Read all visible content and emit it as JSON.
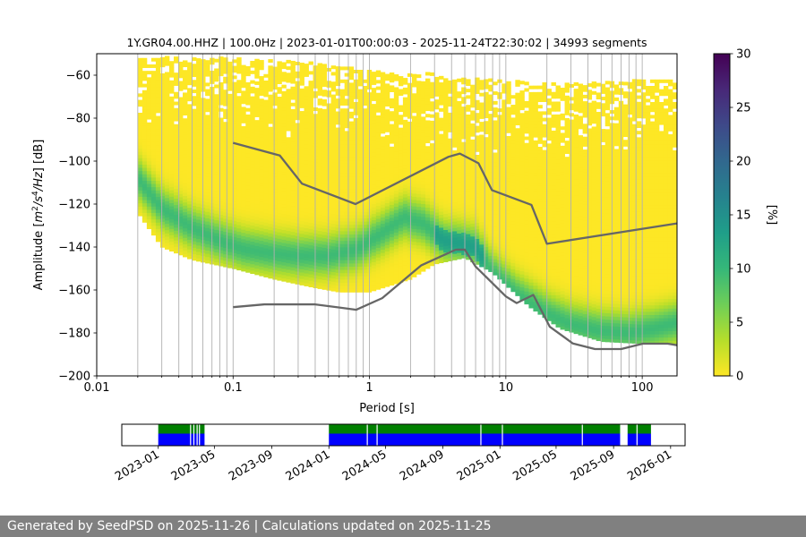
{
  "chart_data": [
    {
      "type": "heatmap",
      "title": "1Y.GR04.00.HHZ | 100.0Hz | 2023-01-01T00:00:03 - 2025-11-24T22:30:02 | 34993 segments",
      "xlabel": "Period [s]",
      "ylabel_parts": [
        "Amplitude [",
        "m",
        "2",
        "/s",
        "4",
        "/Hz",
        "] [dB]"
      ],
      "x_scale": "log",
      "xlim": [
        0.01,
        180
      ],
      "ylim": [
        -200,
        -50
      ],
      "x_ticks": [
        0.01,
        0.1,
        1,
        10,
        100
      ],
      "x_tick_labels": [
        "0.01",
        "0.1",
        "1",
        "10",
        "100"
      ],
      "y_ticks": [
        -200,
        -180,
        -160,
        -140,
        -120,
        -100,
        -80,
        -60
      ],
      "y_tick_labels": [
        "−200",
        "−180",
        "−160",
        "−140",
        "−120",
        "−100",
        "−80",
        "−60"
      ],
      "grid": "x-minor",
      "colorbar": {
        "label": "[%]",
        "range": [
          0,
          30
        ],
        "ticks": [
          0,
          5,
          10,
          15,
          20,
          25,
          30
        ],
        "tick_labels": [
          "0",
          "5",
          "10",
          "15",
          "20",
          "25",
          "30"
        ],
        "colormap": [
          "#fde725",
          "#b5de2b",
          "#6ece58",
          "#35b779",
          "#1f9e89",
          "#26828e",
          "#31688e",
          "#3e4989",
          "#482878",
          "#440154"
        ]
      },
      "mode_curve": {
        "period": [
          0.02,
          0.03,
          0.05,
          0.08,
          0.12,
          0.2,
          0.3,
          0.5,
          0.8,
          1.2,
          1.8,
          2.5,
          3.5,
          4.5,
          6,
          8,
          12,
          20,
          30,
          50,
          80,
          120,
          180
        ],
        "db": [
          -108,
          -122,
          -131,
          -137,
          -141,
          -143,
          -144,
          -144,
          -141,
          -134,
          -126,
          -129,
          -137,
          -138,
          -140,
          -152,
          -162,
          -171,
          -176,
          -179,
          -180,
          -178,
          -175
        ]
      },
      "support_bounds": {
        "period": [
          0.02,
          0.03,
          0.05,
          0.1,
          0.2,
          0.4,
          0.6,
          1.0,
          2.0,
          3.0,
          5.0,
          8.0,
          15.0,
          25.0,
          50.0,
          100.0,
          180.0
        ],
        "lower_db": [
          -124,
          -140,
          -146,
          -150,
          -155,
          -159,
          -161,
          -161,
          -155,
          -148,
          -145,
          -152,
          -168,
          -178,
          -184,
          -185,
          -185
        ],
        "upper_db": [
          -52,
          -52,
          -52,
          -53,
          -54,
          -55,
          -57,
          -58,
          -60,
          -60,
          -62,
          -63,
          -64,
          -65,
          -64,
          -63,
          -62
        ]
      },
      "series": [
        {
          "name": "",
          "color": "#666666",
          "x": [
            0.1,
            0.22,
            0.32,
            0.79,
            3.8,
            4.6,
            6.3,
            7.9,
            15.4,
            20,
            180
          ],
          "y": [
            -91.5,
            -97.4,
            -110.5,
            -120,
            -98,
            -96.5,
            -101,
            -113.5,
            -120.4,
            -138.5,
            -129
          ]
        },
        {
          "name": "",
          "color": "#666666",
          "x": [
            0.1,
            0.17,
            0.4,
            0.8,
            1.24,
            2.4,
            4.3,
            5.0,
            6.0,
            10,
            12,
            15.9,
            21,
            31,
            45,
            70,
            101,
            154,
            180
          ],
          "y": [
            -168,
            -166.7,
            -166.7,
            -169.2,
            -163.8,
            -148.5,
            -141.2,
            -141.2,
            -149.1,
            -163,
            -166.1,
            -162.3,
            -177.1,
            -184.9,
            -187.5,
            -187.5,
            -185,
            -185,
            -185.7
          ]
        }
      ]
    },
    {
      "type": "timeline",
      "x_tick_labels": [
        "2023-01",
        "2023-05",
        "2023-09",
        "2024-01",
        "2024-05",
        "2024-09",
        "2025-01",
        "2025-05",
        "2025-09",
        "2026-01"
      ],
      "x_ticks": [
        "2023-01-01",
        "2023-05-01",
        "2023-09-01",
        "2024-01-01",
        "2024-05-01",
        "2024-09-01",
        "2025-01-01",
        "2025-05-01",
        "2025-09-01",
        "2026-01-01"
      ],
      "xlim": [
        "2022-10-15",
        "2026-02-01"
      ],
      "colors": {
        "available": "#008000",
        "processed": "#0000ff"
      },
      "available_spans": [
        [
          "2023-01-01",
          "2023-04-10"
        ],
        [
          "2024-01-01",
          "2025-09-15"
        ],
        [
          "2025-10-01",
          "2025-11-20"
        ]
      ],
      "processed_spans": [
        [
          "2023-01-01",
          "2023-04-10"
        ],
        [
          "2024-01-01",
          "2025-09-15"
        ],
        [
          "2025-10-01",
          "2025-11-20"
        ]
      ],
      "gaps": [
        "2023-03-10",
        "2023-03-17",
        "2023-03-24",
        "2023-03-29",
        "2024-03-22",
        "2024-04-12",
        "2024-11-20",
        "2025-01-05",
        "2025-06-25",
        "2025-10-20"
      ]
    }
  ],
  "footer": {
    "text": "Generated by SeedPSD on 2025-11-26 | Calculations updated on 2025-11-25"
  }
}
